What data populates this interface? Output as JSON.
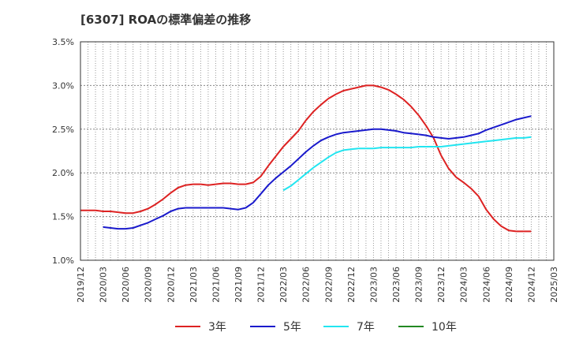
{
  "chart_data": {
    "type": "line",
    "title": "[6307]  ROAの標準偏差の推移",
    "xlabel": "",
    "ylabel": "",
    "ylim": [
      1.0,
      3.5
    ],
    "yticks": [
      "1.0%",
      "1.5%",
      "2.0%",
      "2.5%",
      "3.0%",
      "3.5%"
    ],
    "xticks": [
      "2019/12",
      "2020/03",
      "2020/06",
      "2020/09",
      "2020/12",
      "2021/03",
      "2021/06",
      "2021/09",
      "2021/12",
      "2022/03",
      "2022/06",
      "2022/09",
      "2022/12",
      "2023/03",
      "2023/06",
      "2023/09",
      "2023/12",
      "2024/03",
      "2024/06",
      "2024/09",
      "2024/12",
      "2025/03"
    ],
    "grid": true,
    "legend_position": "bottom",
    "series": [
      {
        "name": "3年",
        "color": "#dd2222",
        "points": [
          [
            "2019/12",
            1.57
          ],
          [
            "2020/01",
            1.57
          ],
          [
            "2020/02",
            1.57
          ],
          [
            "2020/03",
            1.56
          ],
          [
            "2020/04",
            1.56
          ],
          [
            "2020/05",
            1.55
          ],
          [
            "2020/06",
            1.54
          ],
          [
            "2020/07",
            1.54
          ],
          [
            "2020/08",
            1.56
          ],
          [
            "2020/09",
            1.59
          ],
          [
            "2020/10",
            1.64
          ],
          [
            "2020/11",
            1.7
          ],
          [
            "2020/12",
            1.77
          ],
          [
            "2021/01",
            1.83
          ],
          [
            "2021/02",
            1.86
          ],
          [
            "2021/03",
            1.87
          ],
          [
            "2021/04",
            1.87
          ],
          [
            "2021/05",
            1.86
          ],
          [
            "2021/06",
            1.87
          ],
          [
            "2021/07",
            1.88
          ],
          [
            "2021/08",
            1.88
          ],
          [
            "2021/09",
            1.87
          ],
          [
            "2021/10",
            1.87
          ],
          [
            "2021/11",
            1.89
          ],
          [
            "2021/12",
            1.96
          ],
          [
            "2022/01",
            2.08
          ],
          [
            "2022/02",
            2.19
          ],
          [
            "2022/03",
            2.3
          ],
          [
            "2022/04",
            2.39
          ],
          [
            "2022/05",
            2.48
          ],
          [
            "2022/06",
            2.6
          ],
          [
            "2022/07",
            2.7
          ],
          [
            "2022/08",
            2.78
          ],
          [
            "2022/09",
            2.85
          ],
          [
            "2022/10",
            2.9
          ],
          [
            "2022/11",
            2.94
          ],
          [
            "2022/12",
            2.96
          ],
          [
            "2023/01",
            2.98
          ],
          [
            "2023/02",
            3.0
          ],
          [
            "2023/03",
            3.0
          ],
          [
            "2023/04",
            2.98
          ],
          [
            "2023/05",
            2.95
          ],
          [
            "2023/06",
            2.9
          ],
          [
            "2023/07",
            2.84
          ],
          [
            "2023/08",
            2.76
          ],
          [
            "2023/09",
            2.66
          ],
          [
            "2023/10",
            2.54
          ],
          [
            "2023/11",
            2.4
          ],
          [
            "2023/12",
            2.2
          ],
          [
            "2024/01",
            2.05
          ],
          [
            "2024/02",
            1.95
          ],
          [
            "2024/03",
            1.89
          ],
          [
            "2024/04",
            1.82
          ],
          [
            "2024/05",
            1.73
          ],
          [
            "2024/06",
            1.58
          ],
          [
            "2024/07",
            1.47
          ],
          [
            "2024/08",
            1.39
          ],
          [
            "2024/09",
            1.34
          ],
          [
            "2024/10",
            1.33
          ],
          [
            "2024/11",
            1.33
          ],
          [
            "2024/12",
            1.33
          ]
        ]
      },
      {
        "name": "5年",
        "color": "#1a1acc",
        "points": [
          [
            "2020/03",
            1.38
          ],
          [
            "2020/04",
            1.37
          ],
          [
            "2020/05",
            1.36
          ],
          [
            "2020/06",
            1.36
          ],
          [
            "2020/07",
            1.37
          ],
          [
            "2020/08",
            1.4
          ],
          [
            "2020/09",
            1.43
          ],
          [
            "2020/10",
            1.47
          ],
          [
            "2020/11",
            1.51
          ],
          [
            "2020/12",
            1.56
          ],
          [
            "2021/01",
            1.59
          ],
          [
            "2021/02",
            1.6
          ],
          [
            "2021/03",
            1.6
          ],
          [
            "2021/04",
            1.6
          ],
          [
            "2021/05",
            1.6
          ],
          [
            "2021/06",
            1.6
          ],
          [
            "2021/07",
            1.6
          ],
          [
            "2021/08",
            1.59
          ],
          [
            "2021/09",
            1.58
          ],
          [
            "2021/10",
            1.6
          ],
          [
            "2021/11",
            1.66
          ],
          [
            "2021/12",
            1.76
          ],
          [
            "2022/01",
            1.86
          ],
          [
            "2022/02",
            1.94
          ],
          [
            "2022/03",
            2.01
          ],
          [
            "2022/04",
            2.08
          ],
          [
            "2022/05",
            2.16
          ],
          [
            "2022/06",
            2.24
          ],
          [
            "2022/07",
            2.31
          ],
          [
            "2022/08",
            2.37
          ],
          [
            "2022/09",
            2.41
          ],
          [
            "2022/10",
            2.44
          ],
          [
            "2022/11",
            2.46
          ],
          [
            "2022/12",
            2.47
          ],
          [
            "2023/01",
            2.48
          ],
          [
            "2023/02",
            2.49
          ],
          [
            "2023/03",
            2.5
          ],
          [
            "2023/04",
            2.5
          ],
          [
            "2023/05",
            2.49
          ],
          [
            "2023/06",
            2.48
          ],
          [
            "2023/07",
            2.46
          ],
          [
            "2023/08",
            2.45
          ],
          [
            "2023/09",
            2.44
          ],
          [
            "2023/10",
            2.43
          ],
          [
            "2023/11",
            2.41
          ],
          [
            "2023/12",
            2.4
          ],
          [
            "2024/01",
            2.39
          ],
          [
            "2024/02",
            2.4
          ],
          [
            "2024/03",
            2.41
          ],
          [
            "2024/04",
            2.43
          ],
          [
            "2024/05",
            2.45
          ],
          [
            "2024/06",
            2.49
          ],
          [
            "2024/07",
            2.52
          ],
          [
            "2024/08",
            2.55
          ],
          [
            "2024/09",
            2.58
          ],
          [
            "2024/10",
            2.61
          ],
          [
            "2024/11",
            2.63
          ],
          [
            "2024/12",
            2.65
          ]
        ]
      },
      {
        "name": "7年",
        "color": "#22e5f0",
        "points": [
          [
            "2022/03",
            1.8
          ],
          [
            "2022/04",
            1.85
          ],
          [
            "2022/05",
            1.92
          ],
          [
            "2022/06",
            1.99
          ],
          [
            "2022/07",
            2.06
          ],
          [
            "2022/08",
            2.12
          ],
          [
            "2022/09",
            2.18
          ],
          [
            "2022/10",
            2.23
          ],
          [
            "2022/11",
            2.26
          ],
          [
            "2022/12",
            2.27
          ],
          [
            "2023/01",
            2.28
          ],
          [
            "2023/02",
            2.28
          ],
          [
            "2023/03",
            2.28
          ],
          [
            "2023/04",
            2.29
          ],
          [
            "2023/05",
            2.29
          ],
          [
            "2023/06",
            2.29
          ],
          [
            "2023/07",
            2.29
          ],
          [
            "2023/08",
            2.29
          ],
          [
            "2023/09",
            2.3
          ],
          [
            "2023/10",
            2.3
          ],
          [
            "2023/11",
            2.3
          ],
          [
            "2023/12",
            2.3
          ],
          [
            "2024/01",
            2.31
          ],
          [
            "2024/02",
            2.32
          ],
          [
            "2024/03",
            2.33
          ],
          [
            "2024/04",
            2.34
          ],
          [
            "2024/05",
            2.35
          ],
          [
            "2024/06",
            2.36
          ],
          [
            "2024/07",
            2.37
          ],
          [
            "2024/08",
            2.38
          ],
          [
            "2024/09",
            2.39
          ],
          [
            "2024/10",
            2.4
          ],
          [
            "2024/11",
            2.4
          ],
          [
            "2024/12",
            2.41
          ]
        ]
      },
      {
        "name": "10年",
        "color": "#228822",
        "points": []
      }
    ]
  }
}
